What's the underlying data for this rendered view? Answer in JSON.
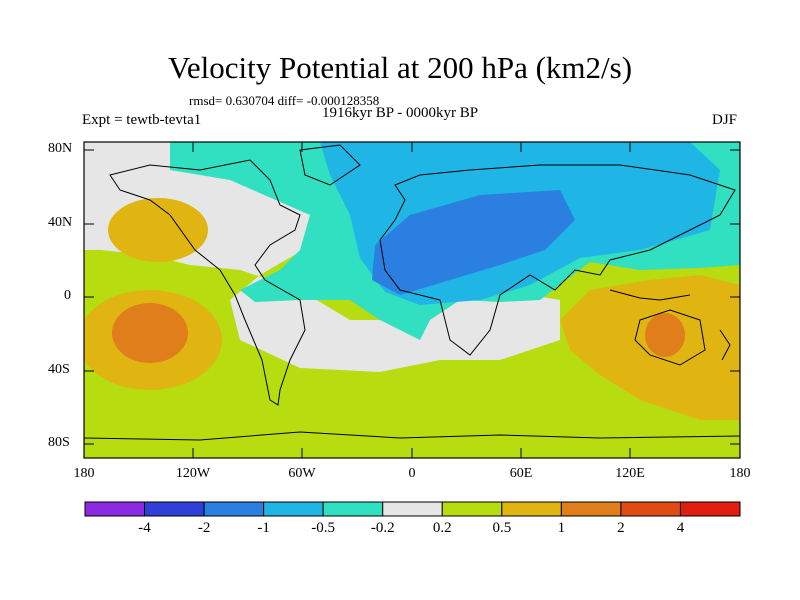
{
  "title": "Velocity Potential at 200 hPa (km2/s)",
  "stats": "rmsd= 0.630704 diff= -0.000128358",
  "experiment": "Expt = tewtb-tevta1",
  "period": "1916kyr BP - 0000kyr BP",
  "season": "DJF",
  "lat_ticks": [
    "80N",
    "40N",
    "0",
    "40S",
    "80S"
  ],
  "lon_ticks": [
    "180",
    "120W",
    "60W",
    "0",
    "60E",
    "120E",
    "180"
  ],
  "colorbar": {
    "levels": [
      "-4",
      "-2",
      "-1",
      "-0.5",
      "-0.2",
      "0.2",
      "0.5",
      "1",
      "2",
      "4"
    ],
    "colors": [
      "#8a2be2",
      "#2f3fd8",
      "#2a7fe0",
      "#1fb6e6",
      "#30e0c0",
      "#e6e6e6",
      "#b7dc0f",
      "#e0b512",
      "#e07e1c",
      "#e04a15",
      "#e01e12"
    ]
  }
}
